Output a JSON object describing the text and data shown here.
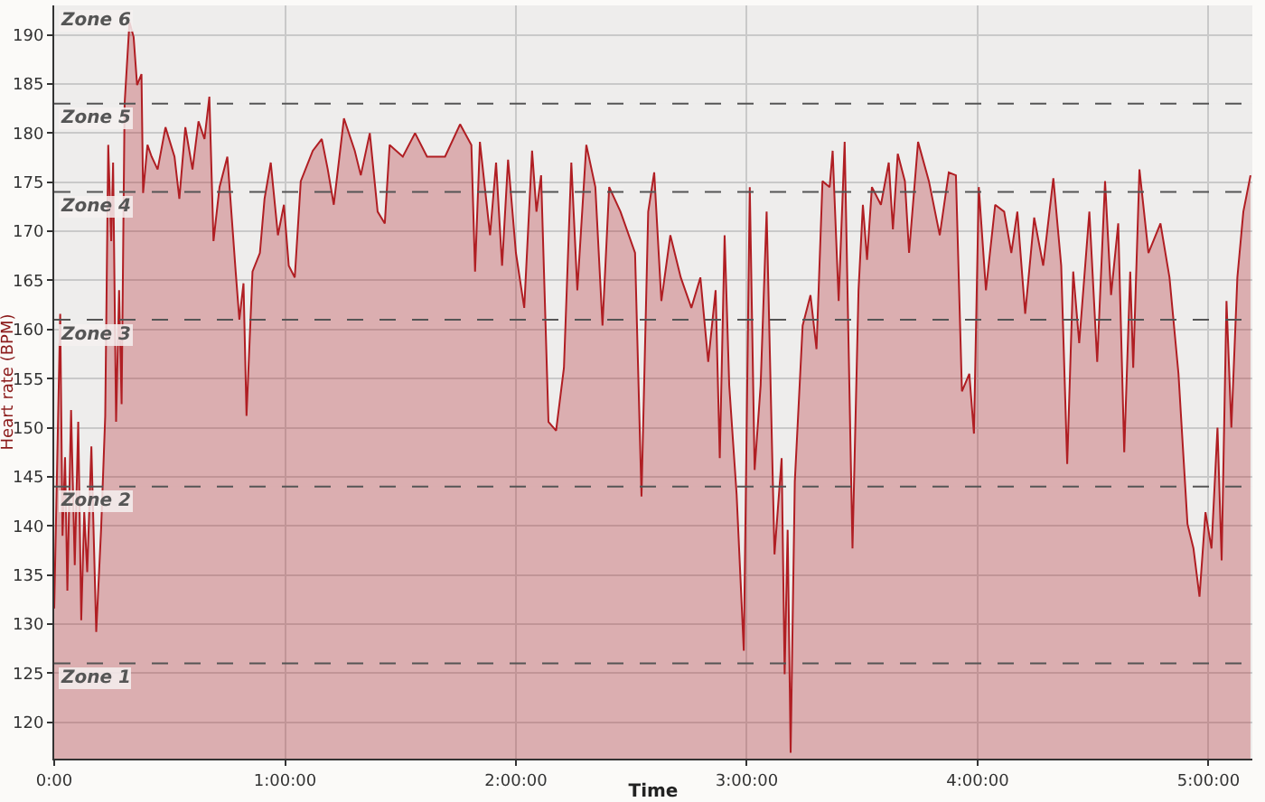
{
  "chart_data": {
    "type": "area",
    "xlabel": "Time",
    "ylabel": "Heart rate (BPM)",
    "x": [
      0,
      0.026,
      0.036,
      0.047,
      0.057,
      0.073,
      0.089,
      0.104,
      0.117,
      0.13,
      0.143,
      0.161,
      0.182,
      0.203,
      0.221,
      0.234,
      0.247,
      0.255,
      0.268,
      0.281,
      0.292,
      0.305,
      0.326,
      0.344,
      0.359,
      0.378,
      0.385,
      0.404,
      0.422,
      0.448,
      0.482,
      0.521,
      0.542,
      0.568,
      0.599,
      0.625,
      0.651,
      0.672,
      0.69,
      0.716,
      0.75,
      0.786,
      0.802,
      0.82,
      0.833,
      0.859,
      0.891,
      0.911,
      0.938,
      0.969,
      0.995,
      1.016,
      1.042,
      1.068,
      1.12,
      1.159,
      1.185,
      1.211,
      1.255,
      1.302,
      1.328,
      1.367,
      1.401,
      1.432,
      1.453,
      1.51,
      1.563,
      1.615,
      1.693,
      1.758,
      1.807,
      1.823,
      1.844,
      1.888,
      1.914,
      1.94,
      1.966,
      2.0,
      2.036,
      2.07,
      2.089,
      2.109,
      2.141,
      2.174,
      2.208,
      2.24,
      2.266,
      2.305,
      2.344,
      2.375,
      2.404,
      2.453,
      2.516,
      2.544,
      2.573,
      2.599,
      2.63,
      2.669,
      2.714,
      2.76,
      2.799,
      2.833,
      2.865,
      2.883,
      2.904,
      2.924,
      2.956,
      2.987,
      3.013,
      3.034,
      3.06,
      3.086,
      3.12,
      3.151,
      3.164,
      3.177,
      3.19,
      3.208,
      3.242,
      3.276,
      3.302,
      3.328,
      3.359,
      3.372,
      3.398,
      3.424,
      3.458,
      3.484,
      3.503,
      3.521,
      3.542,
      3.581,
      3.615,
      3.633,
      3.654,
      3.685,
      3.703,
      3.742,
      3.789,
      3.836,
      3.875,
      3.906,
      3.932,
      3.964,
      3.984,
      4.005,
      4.036,
      4.076,
      4.115,
      4.146,
      4.172,
      4.206,
      4.245,
      4.284,
      4.328,
      4.362,
      4.388,
      4.414,
      4.44,
      4.484,
      4.518,
      4.552,
      4.578,
      4.609,
      4.635,
      4.661,
      4.674,
      4.701,
      4.74,
      4.792,
      4.831,
      4.87,
      4.909,
      4.935,
      4.961,
      4.987,
      5.013,
      5.039,
      5.057,
      5.078,
      5.099,
      5.125,
      5.151,
      5.182
    ],
    "series": [
      {
        "color": "#b01e23",
        "values": [
          131.6,
          161.6,
          139,
          147,
          133.4,
          151.8,
          136,
          150.6,
          130.4,
          141.4,
          135.3,
          148.1,
          129.2,
          139.6,
          151.2,
          178.8,
          169,
          177,
          150.6,
          164,
          152.4,
          183,
          191.3,
          189.8,
          184.9,
          186,
          173.9,
          178.8,
          177.6,
          176.3,
          180.6,
          177.6,
          173.3,
          180.6,
          176.3,
          181.2,
          179.4,
          183.7,
          169,
          174.5,
          177.6,
          165.9,
          161,
          164.7,
          151.2,
          165.9,
          167.8,
          173.3,
          177,
          169.6,
          172.7,
          166.5,
          165.3,
          175.1,
          178.2,
          179.4,
          176.3,
          172.7,
          181.5,
          178.2,
          175.7,
          180,
          172,
          170.8,
          178.8,
          177.6,
          180,
          177.6,
          177.6,
          180.9,
          178.8,
          165.9,
          179.1,
          169.6,
          177,
          166.5,
          177.3,
          167.8,
          162.2,
          178.2,
          172,
          175.7,
          150.6,
          149.7,
          156.1,
          177,
          164,
          178.8,
          174.5,
          160.4,
          174.5,
          172,
          167.8,
          143,
          172,
          176,
          162.9,
          169.6,
          165.3,
          162.2,
          165.3,
          156.7,
          164,
          146.9,
          169.6,
          154.3,
          143.2,
          127.3,
          174.5,
          145.7,
          154.3,
          172,
          137.1,
          146.9,
          124.9,
          139.6,
          116.9,
          144.5,
          160.4,
          163.5,
          158,
          175.1,
          174.5,
          178.2,
          162.9,
          179.1,
          137.7,
          164,
          172.7,
          167.1,
          174.5,
          172.7,
          177,
          170.2,
          177.9,
          175.1,
          167.8,
          179.1,
          175.1,
          169.6,
          176,
          175.7,
          153.7,
          155.5,
          149.4,
          174.5,
          164,
          172.7,
          172,
          167.8,
          172,
          161.6,
          171.4,
          166.5,
          175.4,
          166.5,
          146.3,
          165.9,
          158.6,
          172,
          156.7,
          175.1,
          163.5,
          170.8,
          147.5,
          165.9,
          156.1,
          176.3,
          167.8,
          170.8,
          165.3,
          155.5,
          140.2,
          137.7,
          132.8,
          141.4,
          137.7,
          150,
          136.5,
          162.9,
          150,
          165.3,
          172,
          175.7
        ]
      }
    ],
    "xlim": [
      0,
      5.19
    ],
    "xticks": [
      {
        "value": 0,
        "label": "0:00"
      },
      {
        "value": 1,
        "label": "1:00:00"
      },
      {
        "value": 2,
        "label": "2:00:00"
      },
      {
        "value": 3,
        "label": "3:00:00"
      },
      {
        "value": 4,
        "label": "4:00:00"
      },
      {
        "value": 5,
        "label": "5:00:00"
      }
    ],
    "ylim": [
      116.3,
      193
    ],
    "yticks": [
      120,
      125,
      130,
      135,
      140,
      145,
      150,
      155,
      160,
      165,
      170,
      175,
      180,
      185,
      190
    ],
    "bands": [
      {
        "axis": "y",
        "from": 116.3,
        "to": 126,
        "label": "Zone 1",
        "color": "#c8c8c8"
      },
      {
        "axis": "y",
        "from": 126,
        "to": 144,
        "label": "Zone 2",
        "color": "#c8c8c8"
      },
      {
        "axis": "y",
        "from": 144,
        "to": 161,
        "label": "Zone 3",
        "color": "#c8c8c8"
      },
      {
        "axis": "y",
        "from": 161,
        "to": 174,
        "label": "Zone 4",
        "color": "#c8c8c8"
      },
      {
        "axis": "y",
        "from": 174,
        "to": 183,
        "label": "Zone 5",
        "color": "#c8c8c8"
      },
      {
        "axis": "y",
        "from": 183,
        "to": 193,
        "label": "Zone 6",
        "color": "#c8c8c8"
      }
    ],
    "ref_lines": [
      {
        "axis": "y",
        "value": 126,
        "line_style": "dashed",
        "color": "#555555"
      },
      {
        "axis": "y",
        "value": 144,
        "line_style": "dashed",
        "color": "#555555"
      },
      {
        "axis": "y",
        "value": 161,
        "line_style": "dashed",
        "color": "#555555"
      },
      {
        "axis": "y",
        "value": 174,
        "line_style": "dashed",
        "color": "#555555"
      },
      {
        "axis": "y",
        "value": 183,
        "line_style": "dashed",
        "color": "#555555"
      }
    ],
    "grid": true
  }
}
